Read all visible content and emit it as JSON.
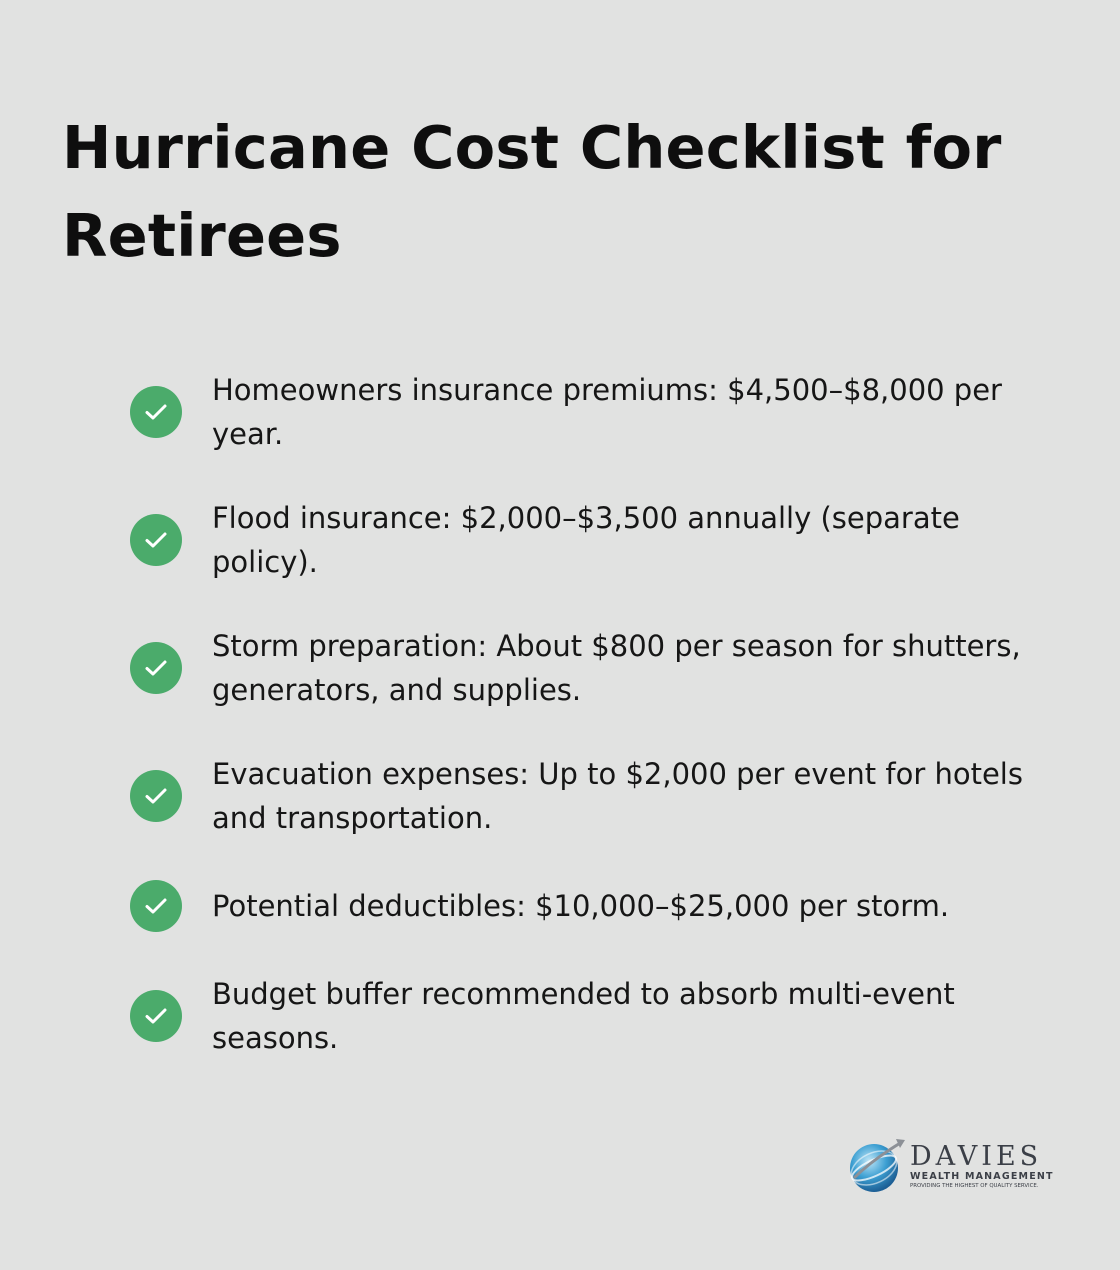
{
  "title": "Hurricane Cost Checklist for Retirees",
  "items": [
    {
      "text": "Homeowners insurance premiums: $4,500–$8,000 per year.",
      "icon": "check-icon"
    },
    {
      "text": "Flood insurance: $2,000–$3,500 annually (separate policy).",
      "icon": "check-icon"
    },
    {
      "text": "Storm preparation: About $800 per season for shutters, generators, and supplies.",
      "icon": "check-icon"
    },
    {
      "text": "Evacuation expenses: Up to $2,000 per event for hotels and transportation.",
      "icon": "check-icon"
    },
    {
      "text": "Potential deductibles: $10,000–$25,000 per storm.",
      "icon": "check-icon"
    },
    {
      "text": "Budget buffer recommended to absorb multi-event seasons.",
      "icon": "check-icon"
    }
  ],
  "logo": {
    "name": "DAVIES",
    "subtitle": "WEALTH MANAGEMENT",
    "tagline": "PROVIDING THE HIGHEST OF QUALITY SERVICE."
  },
  "colors": {
    "background": "#e1e2e1",
    "check_green": "#4bab6b",
    "text": "#161616"
  }
}
